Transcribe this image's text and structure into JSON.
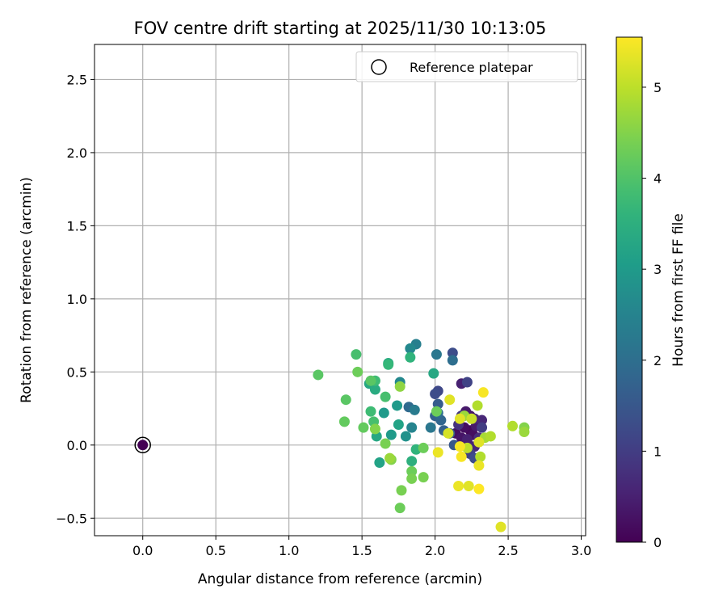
{
  "chart_data": {
    "type": "scatter",
    "title": "FOV centre drift starting at 2025/11/30 10:13:05",
    "xlabel": "Angular distance from reference (arcmin)",
    "ylabel": "Rotation from reference (arcmin)",
    "xlim": [
      -0.33,
      3.03
    ],
    "ylim": [
      -0.62,
      2.74
    ],
    "xticks": [
      0.0,
      0.5,
      1.0,
      1.5,
      2.0,
      2.5,
      3.0
    ],
    "xtick_labels": [
      "0.0",
      "0.5",
      "1.0",
      "1.5",
      "2.0",
      "2.5",
      "3.0"
    ],
    "yticks": [
      -0.5,
      0.0,
      0.5,
      1.0,
      1.5,
      2.0,
      2.5
    ],
    "ytick_labels": [
      "−0.5",
      "0.0",
      "0.5",
      "1.0",
      "1.5",
      "2.0",
      "2.5"
    ],
    "grid": true,
    "legend": {
      "position": "top-right",
      "entries": [
        "Reference platepar"
      ]
    },
    "reference_point": {
      "x": 0.0,
      "y": 0.0,
      "hours": 0.0
    },
    "colorbar": {
      "label": "Hours from first FF file",
      "colormap": "viridis",
      "range": [
        0,
        5.55
      ],
      "ticks": [
        0,
        1,
        2,
        3,
        4,
        5
      ],
      "tick_labels": [
        "0",
        "1",
        "2",
        "3",
        "4",
        "5"
      ]
    },
    "points": [
      {
        "x": 2.12,
        "y": 0.63,
        "hours": 1.3
      },
      {
        "x": 2.22,
        "y": 0.43,
        "hours": 1.1
      },
      {
        "x": 2.18,
        "y": 0.42,
        "hours": 0.5
      },
      {
        "x": 2.02,
        "y": 0.37,
        "hours": 1.2
      },
      {
        "x": 2.0,
        "y": 0.35,
        "hours": 1.3
      },
      {
        "x": 2.1,
        "y": 0.31,
        "hours": 5.3
      },
      {
        "x": 2.02,
        "y": 0.28,
        "hours": 1.6
      },
      {
        "x": 2.18,
        "y": 0.2,
        "hours": 0.9
      },
      {
        "x": 2.21,
        "y": 0.23,
        "hours": 0.4
      },
      {
        "x": 2.24,
        "y": 0.2,
        "hours": 0.3
      },
      {
        "x": 2.27,
        "y": 0.18,
        "hours": 0.6
      },
      {
        "x": 2.32,
        "y": 0.17,
        "hours": 0.6
      },
      {
        "x": 2.16,
        "y": 0.14,
        "hours": 0.8
      },
      {
        "x": 2.2,
        "y": 0.12,
        "hours": 0.2
      },
      {
        "x": 2.24,
        "y": 0.1,
        "hours": 0.1
      },
      {
        "x": 2.28,
        "y": 0.13,
        "hours": 0.4
      },
      {
        "x": 2.32,
        "y": 0.12,
        "hours": 1.0
      },
      {
        "x": 2.14,
        "y": 0.08,
        "hours": 0.2
      },
      {
        "x": 2.18,
        "y": 0.05,
        "hours": 0.3
      },
      {
        "x": 2.22,
        "y": 0.04,
        "hours": 0.5
      },
      {
        "x": 2.26,
        "y": 0.07,
        "hours": 0.2
      },
      {
        "x": 2.3,
        "y": 0.05,
        "hours": 0.7
      },
      {
        "x": 2.19,
        "y": 0.0,
        "hours": 0.4
      },
      {
        "x": 2.23,
        "y": 0.0,
        "hours": 0.1
      },
      {
        "x": 2.27,
        "y": -0.01,
        "hours": 0.6
      },
      {
        "x": 2.24,
        "y": -0.06,
        "hours": 1.1
      },
      {
        "x": 2.27,
        "y": -0.09,
        "hours": 1.3
      },
      {
        "x": 2.13,
        "y": 0.0,
        "hours": 1.5
      },
      {
        "x": 2.1,
        "y": 0.08,
        "hours": 1.6
      },
      {
        "x": 2.06,
        "y": 0.1,
        "hours": 1.7
      },
      {
        "x": 2.0,
        "y": 0.2,
        "hours": 1.7
      },
      {
        "x": 1.97,
        "y": 0.12,
        "hours": 2.2
      },
      {
        "x": 2.02,
        "y": 0.22,
        "hours": 2.0
      },
      {
        "x": 2.04,
        "y": 0.17,
        "hours": 1.8
      },
      {
        "x": 2.12,
        "y": 0.58,
        "hours": 2.0
      },
      {
        "x": 2.01,
        "y": 0.62,
        "hours": 2.2
      },
      {
        "x": 1.87,
        "y": 0.69,
        "hours": 2.4
      },
      {
        "x": 1.83,
        "y": 0.66,
        "hours": 2.6
      },
      {
        "x": 1.82,
        "y": 0.26,
        "hours": 1.9
      },
      {
        "x": 1.86,
        "y": 0.24,
        "hours": 2.3
      },
      {
        "x": 1.84,
        "y": 0.12,
        "hours": 2.5
      },
      {
        "x": 1.8,
        "y": 0.06,
        "hours": 2.8
      },
      {
        "x": 1.76,
        "y": 0.43,
        "hours": 2.6
      },
      {
        "x": 1.74,
        "y": 0.27,
        "hours": 3.0
      },
      {
        "x": 1.75,
        "y": 0.14,
        "hours": 3.2
      },
      {
        "x": 1.7,
        "y": 0.07,
        "hours": 3.0
      },
      {
        "x": 1.65,
        "y": 0.22,
        "hours": 3.0
      },
      {
        "x": 1.55,
        "y": 0.42,
        "hours": 3.3
      },
      {
        "x": 1.59,
        "y": 0.38,
        "hours": 3.4
      },
      {
        "x": 1.6,
        "y": 0.06,
        "hours": 3.3
      },
      {
        "x": 1.62,
        "y": -0.12,
        "hours": 3.2
      },
      {
        "x": 1.68,
        "y": 0.56,
        "hours": 3.4
      },
      {
        "x": 1.83,
        "y": 0.6,
        "hours": 3.6
      },
      {
        "x": 1.99,
        "y": 0.49,
        "hours": 3.3
      },
      {
        "x": 1.84,
        "y": -0.11,
        "hours": 3.5
      },
      {
        "x": 1.87,
        "y": -0.03,
        "hours": 3.6
      },
      {
        "x": 1.68,
        "y": 0.55,
        "hours": 3.7
      },
      {
        "x": 1.66,
        "y": 0.33,
        "hours": 3.9
      },
      {
        "x": 1.59,
        "y": 0.44,
        "hours": 3.8
      },
      {
        "x": 1.56,
        "y": 0.44,
        "hours": 4.1
      },
      {
        "x": 1.58,
        "y": 0.16,
        "hours": 3.9
      },
      {
        "x": 1.56,
        "y": 0.23,
        "hours": 3.8
      },
      {
        "x": 1.51,
        "y": 0.12,
        "hours": 4.2
      },
      {
        "x": 1.46,
        "y": 0.62,
        "hours": 3.9
      },
      {
        "x": 1.47,
        "y": 0.5,
        "hours": 4.3
      },
      {
        "x": 1.2,
        "y": 0.48,
        "hours": 4.1
      },
      {
        "x": 1.39,
        "y": 0.31,
        "hours": 4.1
      },
      {
        "x": 1.38,
        "y": 0.16,
        "hours": 4.2
      },
      {
        "x": 1.59,
        "y": 0.11,
        "hours": 4.5
      },
      {
        "x": 1.66,
        "y": 0.01,
        "hours": 4.4
      },
      {
        "x": 1.7,
        "y": -0.1,
        "hours": 4.5
      },
      {
        "x": 1.69,
        "y": -0.09,
        "hours": 4.7
      },
      {
        "x": 1.77,
        "y": -0.31,
        "hours": 4.4
      },
      {
        "x": 1.76,
        "y": -0.43,
        "hours": 4.3
      },
      {
        "x": 1.84,
        "y": -0.18,
        "hours": 4.3
      },
      {
        "x": 1.84,
        "y": -0.23,
        "hours": 4.4
      },
      {
        "x": 1.92,
        "y": -0.22,
        "hours": 4.4
      },
      {
        "x": 1.92,
        "y": -0.02,
        "hours": 4.3
      },
      {
        "x": 2.01,
        "y": 0.23,
        "hours": 4.3
      },
      {
        "x": 1.76,
        "y": 0.4,
        "hours": 4.6
      },
      {
        "x": 2.2,
        "y": 0.2,
        "hours": 4.7
      },
      {
        "x": 2.29,
        "y": 0.27,
        "hours": 4.9
      },
      {
        "x": 2.34,
        "y": 0.05,
        "hours": 4.8
      },
      {
        "x": 2.38,
        "y": 0.06,
        "hours": 4.9
      },
      {
        "x": 2.53,
        "y": 0.13,
        "hours": 4.9
      },
      {
        "x": 2.61,
        "y": 0.12,
        "hours": 4.5
      },
      {
        "x": 2.61,
        "y": 0.09,
        "hours": 4.7
      },
      {
        "x": 2.31,
        "y": -0.08,
        "hours": 4.9
      },
      {
        "x": 2.22,
        "y": -0.02,
        "hours": 5.0
      },
      {
        "x": 2.25,
        "y": 0.18,
        "hours": 5.1
      },
      {
        "x": 2.09,
        "y": 0.08,
        "hours": 5.2
      },
      {
        "x": 2.3,
        "y": 0.02,
        "hours": 5.3
      },
      {
        "x": 2.17,
        "y": 0.18,
        "hours": 5.3
      },
      {
        "x": 2.02,
        "y": -0.05,
        "hours": 5.4
      },
      {
        "x": 2.17,
        "y": -0.01,
        "hours": 5.5
      },
      {
        "x": 2.18,
        "y": -0.08,
        "hours": 5.5
      },
      {
        "x": 2.16,
        "y": -0.28,
        "hours": 5.4
      },
      {
        "x": 2.23,
        "y": -0.28,
        "hours": 5.3
      },
      {
        "x": 2.3,
        "y": -0.3,
        "hours": 5.6
      },
      {
        "x": 2.3,
        "y": -0.14,
        "hours": 5.4
      },
      {
        "x": 2.45,
        "y": -0.56,
        "hours": 5.3
      },
      {
        "x": 2.33,
        "y": 0.36,
        "hours": 5.5
      }
    ]
  }
}
